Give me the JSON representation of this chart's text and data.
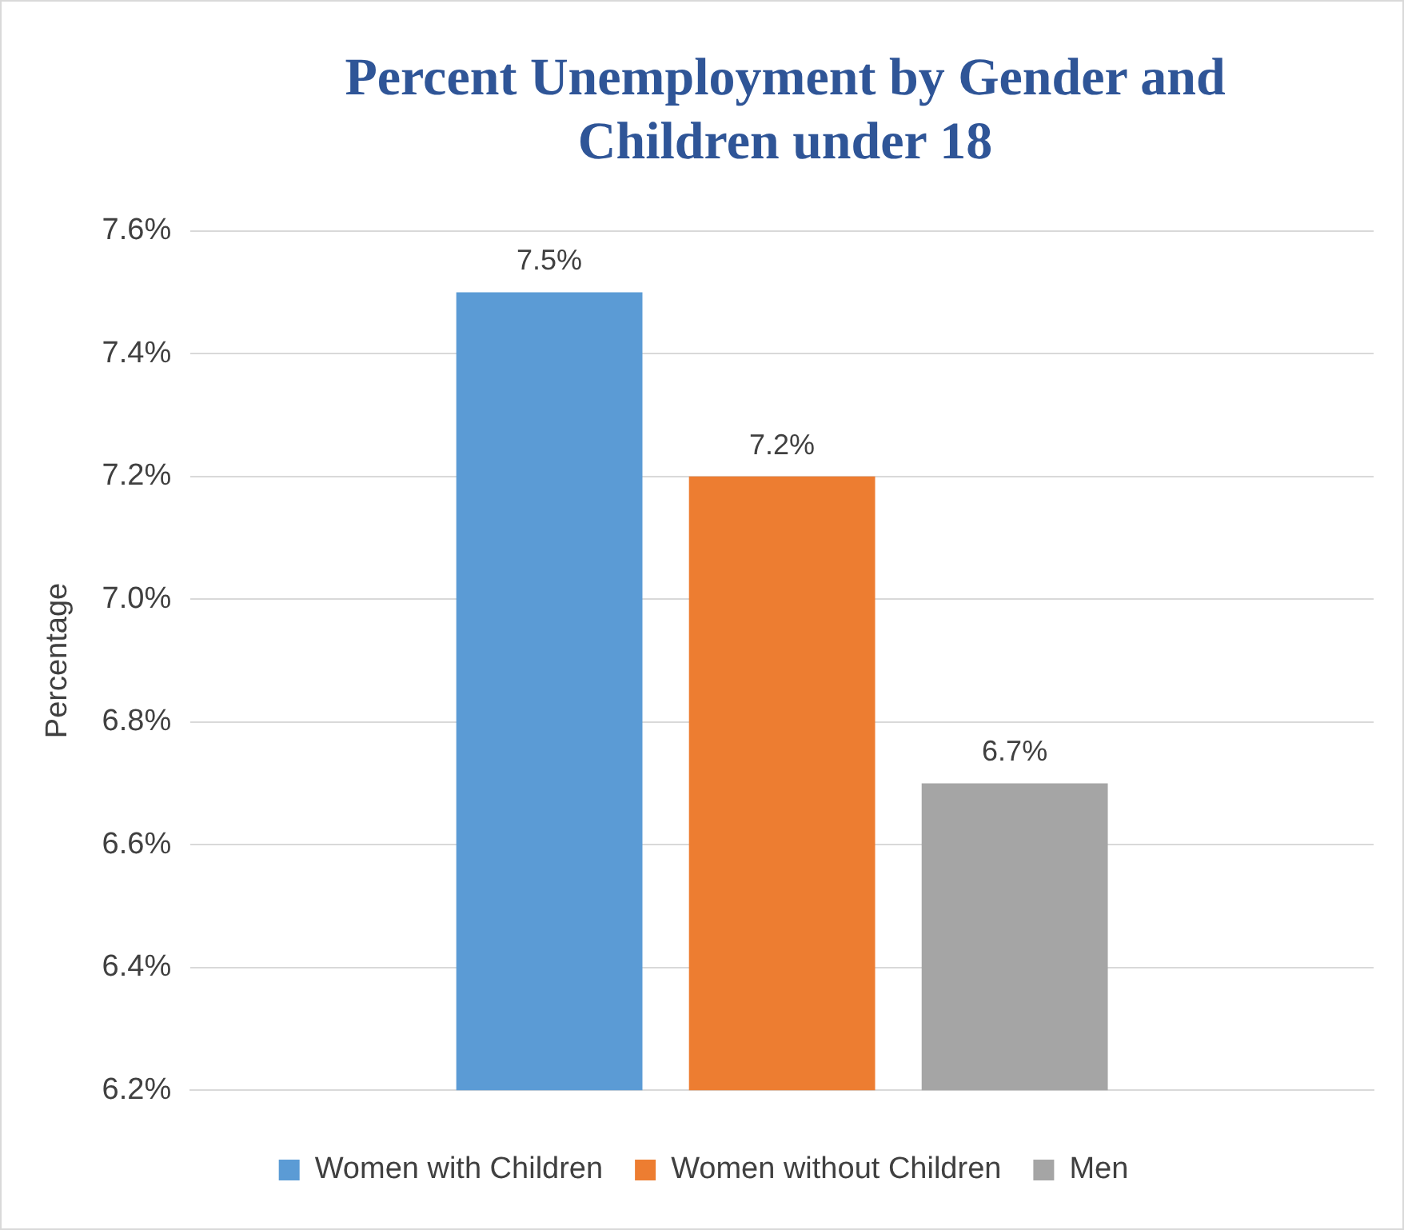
{
  "chart_data": {
    "type": "bar",
    "title": "Percent Unemployment by Gender and Children under 18",
    "ylabel": "Percentage",
    "categories": [
      null
    ],
    "series": [
      {
        "name": "Women with Children",
        "color": "#5b9bd5",
        "values": [
          7.5
        ],
        "value_labels": [
          "7.5%"
        ]
      },
      {
        "name": "Women without Children",
        "color": "#ed7d31",
        "values": [
          7.2
        ],
        "value_labels": [
          "7.2%"
        ]
      },
      {
        "name": "Men",
        "color": "#a5a5a5",
        "values": [
          6.7
        ],
        "value_labels": [
          "6.7%"
        ]
      }
    ],
    "ylim": [
      6.2,
      7.6
    ],
    "yticks": [
      {
        "value": 6.2,
        "label": "6.2%"
      },
      {
        "value": 6.4,
        "label": "6.4%"
      },
      {
        "value": 6.6,
        "label": "6.6%"
      },
      {
        "value": 6.8,
        "label": "6.8%"
      },
      {
        "value": 7.0,
        "label": "7.0%"
      },
      {
        "value": 7.2,
        "label": "7.2%"
      },
      {
        "value": 7.4,
        "label": "7.4%"
      },
      {
        "value": 7.6,
        "label": "7.6%"
      }
    ],
    "grid": "y",
    "legend": "bottom"
  }
}
